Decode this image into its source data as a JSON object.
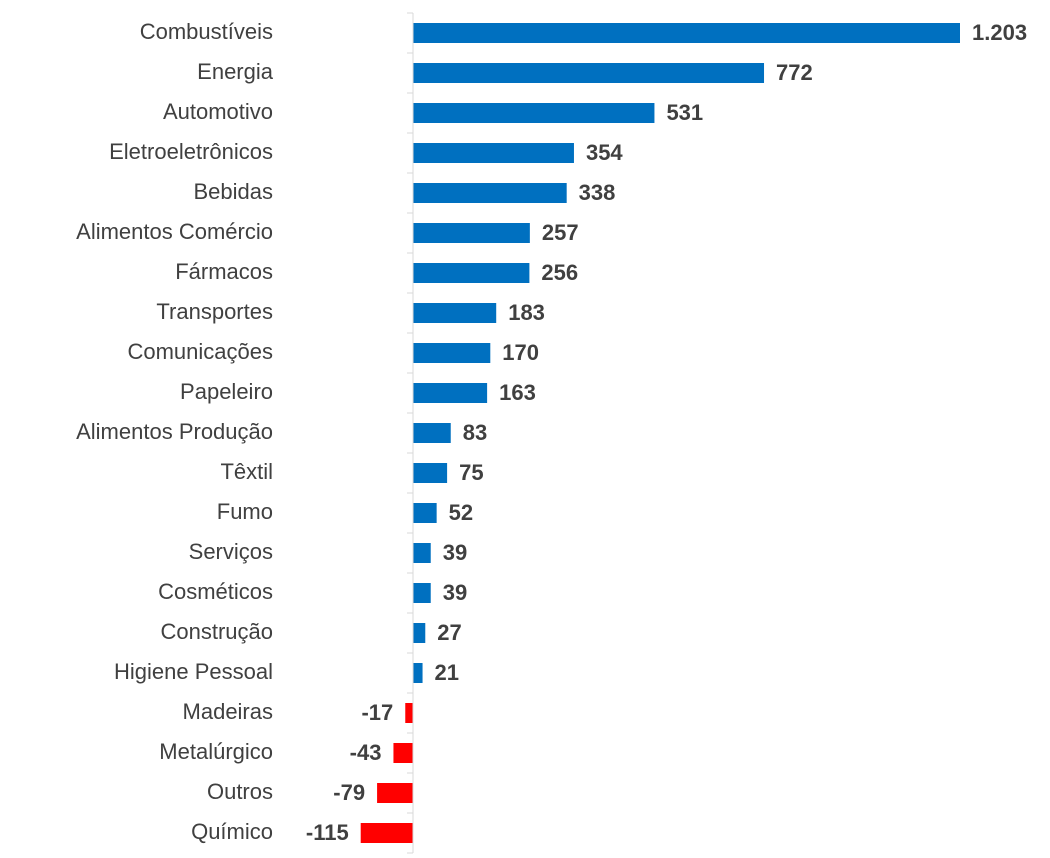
{
  "chart_data": {
    "type": "barh",
    "categories": [
      "Combustíveis",
      "Energia",
      "Automotivo",
      "Eletroeletrônicos",
      "Bebidas",
      "Alimentos Comércio",
      "Fármacos",
      "Transportes",
      "Comunicações",
      "Papeleiro",
      "Alimentos Produção",
      "Têxtil",
      "Fumo",
      "Serviços",
      "Cosméticos",
      "Construção",
      "Higiene Pessoal",
      "Madeiras",
      "Metalúrgico",
      "Outros",
      "Químico"
    ],
    "values": [
      1203,
      772,
      531,
      354,
      338,
      257,
      256,
      183,
      170,
      163,
      83,
      75,
      52,
      39,
      39,
      27,
      21,
      -17,
      -43,
      -79,
      -115
    ],
    "value_labels": [
      "1.203",
      "772",
      "531",
      "354",
      "338",
      "257",
      "256",
      "183",
      "170",
      "163",
      "83",
      "75",
      "52",
      "39",
      "39",
      "27",
      "21",
      "-17",
      "-43",
      "-79",
      "-115"
    ],
    "color": "#0070C0",
    "negative_color": "#FF0000"
  }
}
